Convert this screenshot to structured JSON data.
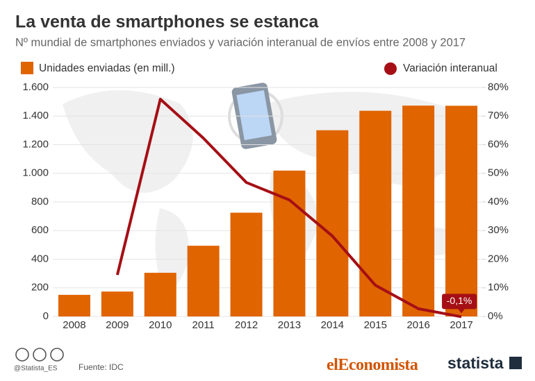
{
  "chart_data": {
    "type": "bar",
    "title": "La venta de smartphones se estanca",
    "subtitle": "Nº mundial de smartphones enviados y variación interanual de envíos entre 2008 y 2017",
    "categories": [
      "2008",
      "2009",
      "2010",
      "2011",
      "2012",
      "2013",
      "2014",
      "2015",
      "2016",
      "2017"
    ],
    "series": [
      {
        "name": "Unidades enviadas (en mill.)",
        "type": "bar",
        "color": "#e06400",
        "values": [
          151,
          174,
          305,
          494,
          725,
          1019,
          1301,
          1437,
          1473,
          1472
        ]
      },
      {
        "name": "Variación interanual",
        "type": "line",
        "axis": "y2",
        "color": "#a50f15",
        "values": [
          null,
          14.5,
          75.9,
          62.3,
          46.8,
          40.7,
          28.1,
          10.9,
          2.7,
          -0.1
        ],
        "value_labels": [
          null,
          null,
          null,
          null,
          null,
          null,
          null,
          null,
          null,
          "-0,1%"
        ]
      }
    ],
    "ylim": [
      0,
      1600
    ],
    "yticks": [
      0,
      200,
      400,
      600,
      800,
      {
        "value": 1000,
        "label": "1.000"
      },
      {
        "value": 1200,
        "label": "1.200"
      },
      {
        "value": 1400,
        "label": "1.400"
      },
      {
        "value": 1600,
        "label": "1.600"
      }
    ],
    "y2lim": [
      0,
      80
    ],
    "y2ticks": [
      {
        "value": 0,
        "label": "0%"
      },
      {
        "value": 10,
        "label": "10%"
      },
      {
        "value": 20,
        "label": "20%"
      },
      {
        "value": 30,
        "label": "30%"
      },
      {
        "value": 40,
        "label": "40%"
      },
      {
        "value": 50,
        "label": "50%"
      },
      {
        "value": 60,
        "label": "60%"
      },
      {
        "value": 70,
        "label": "70%"
      },
      {
        "value": 80,
        "label": "80%"
      }
    ],
    "grid": true
  },
  "footer": {
    "handle": "@Statista_ES",
    "source": "Fuente: IDC",
    "partner_prefix": "el",
    "partner_name": "Economista",
    "brand": "statista"
  }
}
